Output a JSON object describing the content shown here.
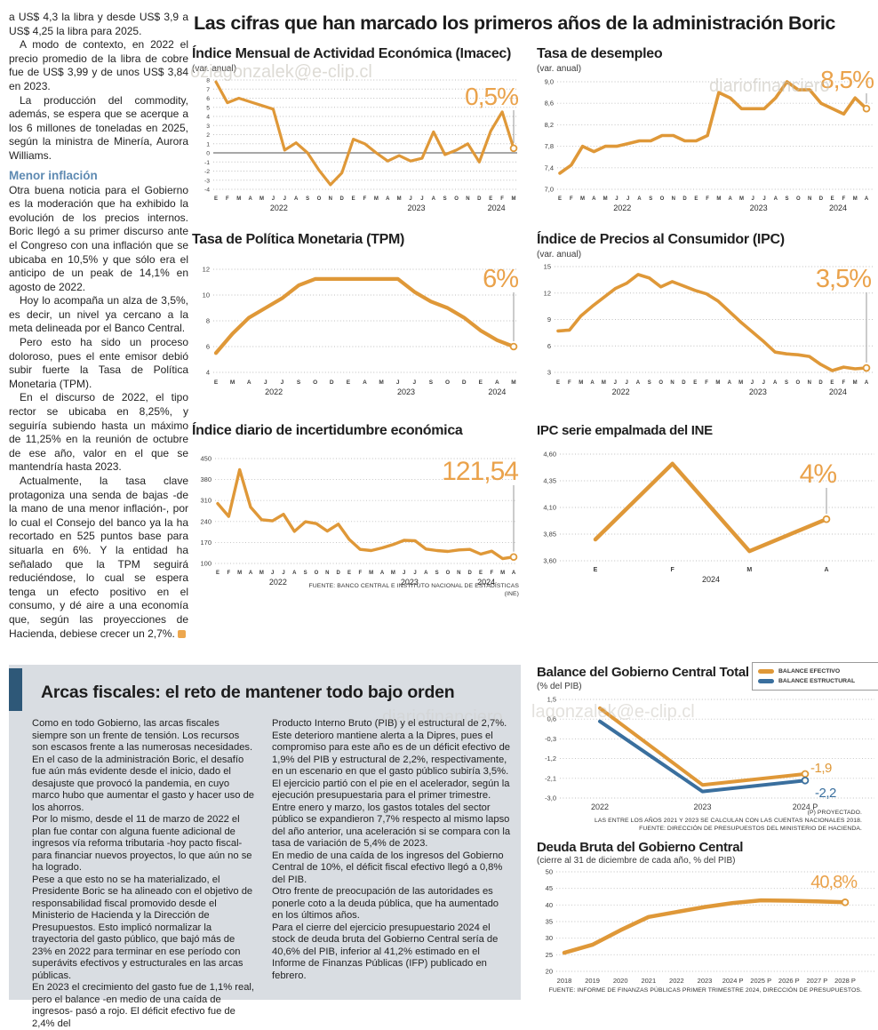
{
  "main_title": "Las cifras que han marcado los primeros años de la administración Boric",
  "watermarks": [
    "oziagonzalek@e-clip.cl",
    "diariofinanciero",
    "lagonzalek@e-clip.cl",
    "diariofinanciero"
  ],
  "colors": {
    "orange": "#df9838",
    "orange_label": "#eaa24b",
    "blue": "#3a6f9e",
    "grid": "#bfbfbf",
    "axis_text": "#3c3c3c",
    "zero_line": "#8c8c8c",
    "pointer": "#9a9a9a",
    "circle_fill": "#fffdf6"
  },
  "left_column": {
    "paragraphs_top": [
      "a US$ 4,3 la libra y desde US$ 3,9 a US$ 4,25 la libra para 2025.",
      "A modo de contexto, en 2022 el precio promedio de la libra de cobre fue de US$ 3,99 y de unos US$ 3,84 en 2023.",
      "La producción del commodity, además, se espera que se acerque a los 6 millones de toneladas en 2025, según la ministra de Minería, Aurora Williams."
    ],
    "subhead": "Menor inflación",
    "paragraphs_bottom": [
      "Otra buena noticia para el Gobierno es la moderación que ha exhibido la evolución de los precios internos. Boric llegó a su primer discurso ante el Congreso con una inflación que se ubicaba en 10,5% y que sólo era el anticipo de un peak de 14,1% en agosto de 2022.",
      "Hoy lo acompaña un alza de 3,5%, es decir, un nivel ya cercano a la meta delineada por el Banco Central.",
      "Pero esto ha sido un proceso doloroso, pues el ente emisor debió subir fuerte la Tasa de Política Monetaria (TPM).",
      "En el discurso de 2022, el tipo rector se ubicaba en 8,25%, y seguiría subiendo hasta un máximo de 11,25% en la reunión de octubre de ese año, valor en el que se mantendría hasta 2023.",
      "Actualmente, la tasa clave protagoniza una senda de bajas -de la mano de una menor inflación-, por lo cual el Consejo del banco ya la ha recortado en 525 puntos base para situarla en 6%. Y la entidad ha señalado que la TPM seguirá reduciéndose, lo cual se espera tenga un efecto positivo en el consumo, y dé aire a una economía que, según las proyecciones de Hacienda, debiese crecer un 2,7%."
    ]
  },
  "fiscal_box": {
    "headline": "Arcas fiscales: el reto de mantener todo bajo orden",
    "col1": [
      "Como en todo Gobierno, las arcas fiscales siempre son un frente de tensión. Los recursos son escasos frente a las numerosas necesidades. En el caso de la administración Boric, el desafío fue aún más evidente desde el inicio, dado el desajuste que provocó la pandemia, en cuyo marco hubo que aumentar el gasto y hacer uso de los ahorros.",
      "Por lo mismo, desde el 11 de marzo de 2022 el plan fue contar con alguna fuente adicional de ingresos vía reforma tributaria -hoy pacto fiscal- para financiar nuevos proyectos, lo que aún no se ha logrado.",
      "Pese a que esto no se ha materializado, el Presidente Boric se ha alineado con el objetivo de responsabilidad fiscal promovido desde el Ministerio de Hacienda y la Dirección de Presupuestos. Esto implicó normalizar la trayectoria del gasto público, que bajó más de 23% en 2022 para terminar en ese período con superávits efectivos y estructurales en las arcas públicas.",
      "En 2023 el crecimiento del gasto fue de 1,1% real, pero el balance -en medio de una caída de ingresos-  pasó a rojo. El déficit efectivo fue de 2,4% del"
    ],
    "col2": [
      "Producto Interno Bruto (PIB) y el estructural de 2,7%. Este deterioro mantiene alerta a la Dipres, pues el compromiso para este año es de un déficit efectivo de 1,9% del PIB y estructural de 2,2%, respectivamente, en un escenario en que el gasto público subiría 3,5%.",
      "El ejercicio partió con el pie en el acelerador, según la ejecución presupuestaria para el primer trimestre. Entre enero y marzo, los gastos totales del sector público se expandieron 7,7% respecto al mismo lapso del año anterior, una aceleración si se compara con la tasa de variación de 5,4% de 2023.",
      "En medio de una caída de los ingresos del Gobierno Central de 10%, el déficit fiscal efectivo llegó a 0,8% del PIB.",
      "Otro frente de preocupación de las autoridades es ponerle coto a la deuda pública, que ha aumentado en los últimos años.",
      "Para el cierre del ejercicio presupuestario 2024 el stock de deuda bruta del Gobierno Central sería de 40,6% del PIB, inferior al 41,2% estimado en el Informe de Finanzas Públicas (IFP) publicado en febrero."
    ]
  },
  "chart_data": [
    {
      "id": "imacec",
      "type": "line",
      "title": "Índice Mensual de Actividad Económica (Imacec)",
      "subtitle": "(var. anual)",
      "big_label": "0,5%",
      "ylim": [
        -4,
        8
      ],
      "zero_line": true,
      "tick_labels": [
        "8",
        "7",
        "6",
        "5",
        "4",
        "3",
        "2",
        "1",
        "0",
        "-1",
        "-2",
        "-3",
        "-4"
      ],
      "tick_values": [
        8,
        7,
        6,
        5,
        4,
        3,
        2,
        1,
        0,
        -1,
        -2,
        -3,
        -4
      ],
      "x_labels": [
        "E",
        "F",
        "M",
        "A",
        "M",
        "J",
        "J",
        "A",
        "S",
        "O",
        "N",
        "D",
        "E",
        "F",
        "M",
        "A",
        "M",
        "J",
        "J",
        "A",
        "S",
        "O",
        "N",
        "D",
        "E",
        "F",
        "M"
      ],
      "year_labels": [
        {
          "text": "2022",
          "idx": 5.5
        },
        {
          "text": "2023",
          "idx": 17.5
        },
        {
          "text": "2024",
          "idx": 24.5
        }
      ],
      "values": [
        7.8,
        5.5,
        6.0,
        5.6,
        5.2,
        4.8,
        0.3,
        1.1,
        0.0,
        -1.9,
        -3.5,
        -2.2,
        1.5,
        1.0,
        0.0,
        -0.9,
        -0.3,
        -0.9,
        -0.6,
        2.3,
        -0.2,
        0.3,
        1.0,
        -1.0,
        2.4,
        4.5,
        0.5
      ]
    },
    {
      "id": "desempleo",
      "type": "line",
      "title": "Tasa de desempleo",
      "subtitle": "(var. anual)",
      "big_label": "8,5%",
      "ylim": [
        7.0,
        9.0
      ],
      "tick_labels": [
        "9,0",
        "8,6",
        "8,2",
        "7,8",
        "7,4",
        "7,0"
      ],
      "tick_values": [
        9.0,
        8.6,
        8.2,
        7.8,
        7.4,
        7.0
      ],
      "x_labels": [
        "E",
        "F",
        "M",
        "A",
        "M",
        "J",
        "J",
        "A",
        "S",
        "O",
        "N",
        "D",
        "E",
        "F",
        "M",
        "A",
        "M",
        "J",
        "J",
        "A",
        "S",
        "O",
        "N",
        "D",
        "E",
        "F",
        "M",
        "A"
      ],
      "year_labels": [
        {
          "text": "2022",
          "idx": 5.5
        },
        {
          "text": "2023",
          "idx": 17.5
        },
        {
          "text": "2024",
          "idx": 24.5
        }
      ],
      "values": [
        7.3,
        7.45,
        7.8,
        7.7,
        7.8,
        7.8,
        7.85,
        7.9,
        7.9,
        8.0,
        8.0,
        7.9,
        7.9,
        8.0,
        8.8,
        8.7,
        8.5,
        8.5,
        8.5,
        8.7,
        9.0,
        8.85,
        8.85,
        8.6,
        8.5,
        8.4,
        8.7,
        8.5
      ]
    },
    {
      "id": "tpm",
      "type": "line",
      "title": "Tasa de Política Monetaria (TPM)",
      "big_label": "6%",
      "ylim": [
        4,
        12
      ],
      "tick_labels": [
        "12",
        "10",
        "8",
        "6",
        "4"
      ],
      "tick_values": [
        12,
        10,
        8,
        6,
        4
      ],
      "x_labels": [
        "E",
        "M",
        "A",
        "J",
        "J",
        "S",
        "O",
        "D",
        "E",
        "A",
        "M",
        "J",
        "J",
        "S",
        "O",
        "D",
        "E",
        "A",
        "M"
      ],
      "year_labels": [
        {
          "text": "2022",
          "idx": 3.5
        },
        {
          "text": "2023",
          "idx": 11.5
        },
        {
          "text": "2024",
          "idx": 17
        }
      ],
      "values": [
        5.5,
        7.0,
        8.25,
        9.0,
        9.75,
        10.75,
        11.25,
        11.25,
        11.25,
        11.25,
        11.25,
        11.25,
        10.25,
        9.5,
        9.0,
        8.25,
        7.25,
        6.5,
        6.0
      ]
    },
    {
      "id": "ipc",
      "type": "line",
      "title": "Índice de Precios al Consumidor (IPC)",
      "subtitle": "(var. anual)",
      "big_label": "3,5%",
      "ylim": [
        3,
        15
      ],
      "tick_labels": [
        "15",
        "12",
        "9",
        "6",
        "3"
      ],
      "tick_values": [
        15,
        12,
        9,
        6,
        3
      ],
      "x_labels": [
        "E",
        "F",
        "M",
        "A",
        "M",
        "J",
        "J",
        "A",
        "S",
        "O",
        "N",
        "D",
        "E",
        "F",
        "M",
        "A",
        "M",
        "J",
        "J",
        "A",
        "S",
        "O",
        "N",
        "D",
        "E",
        "F",
        "M",
        "A"
      ],
      "year_labels": [
        {
          "text": "2022",
          "idx": 5.5
        },
        {
          "text": "2023",
          "idx": 17.5
        },
        {
          "text": "2024",
          "idx": 24.5
        }
      ],
      "values": [
        7.7,
        7.8,
        9.4,
        10.5,
        11.5,
        12.5,
        13.1,
        14.1,
        13.7,
        12.7,
        13.3,
        12.8,
        12.3,
        11.9,
        11.1,
        9.9,
        8.7,
        7.6,
        6.5,
        5.3,
        5.1,
        5.0,
        4.8,
        3.9,
        3.2,
        3.6,
        3.4,
        3.5
      ]
    },
    {
      "id": "incertidumbre",
      "type": "line",
      "title": "Índice diario de incertidumbre económica",
      "big_label": "121,54",
      "ylim": [
        100,
        450
      ],
      "tick_labels": [
        "450",
        "380",
        "310",
        "240",
        "170",
        "100"
      ],
      "tick_values": [
        450,
        380,
        310,
        240,
        170,
        100
      ],
      "x_labels": [
        "E",
        "F",
        "M",
        "A",
        "M",
        "J",
        "J",
        "A",
        "S",
        "O",
        "N",
        "D",
        "E",
        "F",
        "M",
        "A",
        "M",
        "J",
        "J",
        "A",
        "S",
        "O",
        "N",
        "D",
        "E",
        "F",
        "M",
        "A"
      ],
      "year_labels": [
        {
          "text": "2022",
          "idx": 5.5
        },
        {
          "text": "2023",
          "idx": 17.5
        },
        {
          "text": "2024",
          "idx": 24.5
        }
      ],
      "values": [
        300,
        257,
        413,
        288,
        246,
        242,
        264,
        207,
        239,
        233,
        208,
        231,
        180,
        147,
        143,
        152,
        163,
        177,
        176,
        148,
        143,
        140,
        145,
        147,
        131,
        141,
        116,
        121.54
      ],
      "source": "FUENTE: BANCO CENTRAL E INSTITUTO NACIONAL DE ESTADÍSTICAS (INE)"
    },
    {
      "id": "ipc_empalmada",
      "type": "line",
      "title": "IPC serie empalmada del INE",
      "big_label": "4%",
      "ylim": [
        3.6,
        4.6
      ],
      "tick_labels": [
        "4,60",
        "4,35",
        "4,10",
        "3,85",
        "3,60"
      ],
      "tick_values": [
        4.6,
        4.35,
        4.1,
        3.85,
        3.6
      ],
      "x_labels": [
        "E",
        "F",
        "M",
        "A"
      ],
      "year_labels": [
        {
          "text": "2024",
          "idx": 1.5
        }
      ],
      "values": [
        3.8,
        4.51,
        3.69,
        3.99
      ]
    },
    {
      "id": "balance",
      "type": "line",
      "title": "Balance del Gobierno Central Total",
      "subtitle": "(% del PIB)",
      "ylim": [
        -3.0,
        1.5
      ],
      "tick_labels": [
        "1,5",
        "0,6",
        "-0,3",
        "-1,2",
        "-2,1",
        "-3,0"
      ],
      "tick_values": [
        1.5,
        0.6,
        -0.3,
        -1.2,
        -2.1,
        -3.0
      ],
      "x_labels": [
        "2022",
        "2023",
        "2024 P"
      ],
      "series": [
        {
          "name": "BALANCE EFECTIVO",
          "color": "orange",
          "values": [
            1.1,
            -2.4,
            -1.9
          ],
          "end_label": "-1,9"
        },
        {
          "name": "BALANCE ESTRUCTURAL",
          "color": "blue",
          "values": [
            0.5,
            -2.7,
            -2.2
          ],
          "end_label": "-2,2"
        }
      ],
      "footnotes": [
        "(P) PROYECTADO.",
        "LAS ENTRE LOS AÑOS 2021 Y 2023 SE CALCULAN  CON LAS CUENTAS NACIONALES 2018.",
        "FUENTE: DIRECCIÓN DE PRESUPUESTOS DEL MINISTERIO DE HACIENDA."
      ]
    },
    {
      "id": "deuda",
      "type": "line",
      "title": "Deuda Bruta del Gobierno Central",
      "subtitle": "(cierre al 31 de diciembre de cada año, % del PIB)",
      "big_label": "40,8%",
      "ylim": [
        20,
        50
      ],
      "tick_labels": [
        "50",
        "45",
        "40",
        "35",
        "30",
        "25",
        "20"
      ],
      "tick_values": [
        50,
        45,
        40,
        35,
        30,
        25,
        20
      ],
      "x_labels": [
        "2018",
        "2019",
        "2020",
        "2021",
        "2022",
        "2023",
        "2024 P",
        "2025 P",
        "2026 P",
        "2027 P",
        "2028 P"
      ],
      "values": [
        25.6,
        28.0,
        32.4,
        36.4,
        37.9,
        39.4,
        40.6,
        41.4,
        41.3,
        41.1,
        40.8
      ],
      "source": "FUENTE: INFORME DE FINANZAS PÚBLICAS PRIMER TRIMESTRE 2024, DIRECCIÓN DE PRESUPUESTOS."
    }
  ]
}
